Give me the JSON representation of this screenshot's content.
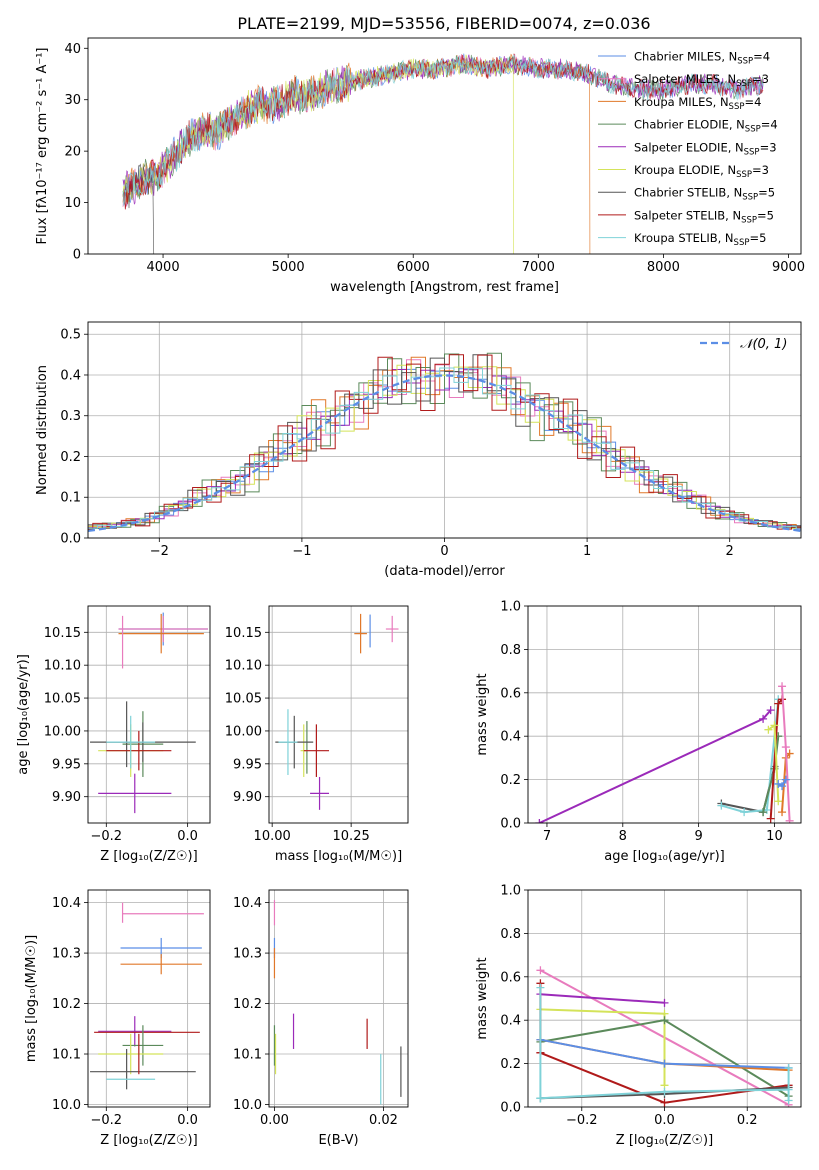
{
  "figure_title": "PLATE=2199, MJD=53556, FIBERID=0074, z=0.036",
  "colors": {
    "chabrier_miles": "#5b8ee6",
    "salpeter_miles": "#e87bbd",
    "kroupa_miles": "#e0782a",
    "chabrier_elodie": "#5b8a5b",
    "salpeter_elodie": "#9b2ab9",
    "kroupa_elodie": "#d4e35a",
    "chabrier_stelib": "#555555",
    "salpeter_stelib": "#b01a1a",
    "kroupa_stelib": "#7fd2d8",
    "normal_curve": "#5b8ee6",
    "grid": "#b0b0b0"
  },
  "chart_data": [
    {
      "id": "spectrum",
      "type": "line",
      "title": "PLATE=2199, MJD=53556, FIBERID=0074, z=0.036",
      "xlabel": "wavelength [Angstrom, rest frame]",
      "ylabel": "Flux [fλ10⁻¹⁷ erg cm⁻² s⁻¹ A⁻¹]",
      "xlim": [
        3400,
        9100
      ],
      "ylim": [
        0,
        42
      ],
      "xticks": [
        4000,
        5000,
        6000,
        7000,
        8000,
        9000
      ],
      "yticks": [
        0,
        10,
        20,
        30,
        40
      ],
      "grid": false,
      "legend_position": "upper-right",
      "continuum": {
        "x": [
          3680,
          3750,
          3850,
          3950,
          4050,
          4150,
          4300,
          4450,
          4600,
          4750,
          4900,
          5050,
          5200,
          5400,
          5600,
          5800,
          6000,
          6200,
          6400,
          6600,
          6800,
          7000,
          7200,
          7400,
          7600,
          7800,
          8000,
          8200,
          8400,
          8600,
          8800
        ],
        "y": [
          12,
          13,
          15,
          15,
          18,
          21,
          24,
          24,
          27,
          29,
          29,
          31,
          31,
          33,
          34,
          35,
          36,
          36,
          37,
          36,
          37,
          36,
          36,
          35,
          33,
          32,
          32,
          33,
          33,
          32,
          33
        ]
      },
      "dropouts": [
        {
          "series": "Chabrier STELIB, N_SSP=5",
          "from_x": 3920,
          "x": [
            3920,
            3925
          ],
          "y": [
            12,
            0
          ]
        },
        {
          "series": "Kroupa ELODIE, N_SSP=3",
          "from_x": 6800,
          "x": [
            6800,
            6802
          ],
          "y": [
            33,
            0
          ]
        },
        {
          "series": "Kroupa MILES, N_SSP=4",
          "from_x": 7410,
          "x": [
            7410,
            7412
          ],
          "y": [
            35,
            0
          ]
        }
      ],
      "series": [
        {
          "name": "Chabrier MILES, N_SSP=4",
          "label": "Chabrier MILES, N",
          "sub": "SSP",
          "eq": "=4",
          "color_key": "chabrier_miles"
        },
        {
          "name": "Salpeter MILES, N_SSP=3",
          "label": "Salpeter MILES, N",
          "sub": "SSP",
          "eq": "=3",
          "color_key": "salpeter_miles"
        },
        {
          "name": "Kroupa MILES, N_SSP=4",
          "label": "Kroupa MILES, N",
          "sub": "SSP",
          "eq": "=4",
          "color_key": "kroupa_miles"
        },
        {
          "name": "Chabrier ELODIE, N_SSP=4",
          "label": "Chabrier ELODIE, N",
          "sub": "SSP",
          "eq": "=4",
          "color_key": "chabrier_elodie"
        },
        {
          "name": "Salpeter ELODIE, N_SSP=3",
          "label": "Salpeter ELODIE, N",
          "sub": "SSP",
          "eq": "=3",
          "color_key": "salpeter_elodie"
        },
        {
          "name": "Kroupa ELODIE, N_SSP=3",
          "label": "Kroupa ELODIE, N",
          "sub": "SSP",
          "eq": "=3",
          "color_key": "kroupa_elodie"
        },
        {
          "name": "Chabrier STELIB, N_SSP=5",
          "label": "Chabrier STELIB, N",
          "sub": "SSP",
          "eq": "=5",
          "color_key": "chabrier_stelib"
        },
        {
          "name": "Salpeter STELIB, N_SSP=5",
          "label": "Salpeter STELIB, N",
          "sub": "SSP",
          "eq": "=5",
          "color_key": "salpeter_stelib"
        },
        {
          "name": "Kroupa STELIB, N_SSP=5",
          "label": "Kroupa STELIB, N",
          "sub": "SSP",
          "eq": "=5",
          "color_key": "kroupa_stelib"
        }
      ]
    },
    {
      "id": "residuals",
      "type": "histogram",
      "xlabel": "(data-model)/error",
      "ylabel": "Normed distribution",
      "xlim": [
        -2.5,
        2.5
      ],
      "ylim": [
        0,
        0.53
      ],
      "xticks": [
        -2,
        -1,
        0,
        1,
        2
      ],
      "yticks": [
        0.0,
        0.1,
        0.2,
        0.3,
        0.4,
        0.5
      ],
      "grid": true,
      "legend_position": "upper-right",
      "bin_width": 0.1,
      "reference_curve": {
        "label": "𝒩(0, 1)",
        "mean": 0,
        "sigma": 1
      },
      "reference_profile": {
        "x": [
          -2.5,
          -2.3,
          -2.1,
          -1.9,
          -1.7,
          -1.5,
          -1.3,
          -1.1,
          -0.9,
          -0.7,
          -0.5,
          -0.3,
          -0.1,
          0.0,
          0.1,
          0.3,
          0.5,
          0.7,
          0.9,
          1.1,
          1.3,
          1.5,
          1.7,
          1.9,
          2.1,
          2.3,
          2.5
        ],
        "y": [
          0.025,
          0.03,
          0.045,
          0.07,
          0.1,
          0.13,
          0.18,
          0.22,
          0.27,
          0.31,
          0.35,
          0.38,
          0.395,
          0.4,
          0.395,
          0.38,
          0.35,
          0.31,
          0.27,
          0.22,
          0.18,
          0.13,
          0.1,
          0.07,
          0.045,
          0.03,
          0.025
        ]
      },
      "bin_jitter": [
        0.0,
        0.03,
        -0.02,
        0.05,
        -0.04,
        0.02,
        -0.05,
        0.04,
        0.01,
        -0.03,
        0.06,
        -0.01,
        0.03,
        -0.06,
        0.02,
        0.04,
        -0.02,
        0.05,
        -0.04,
        0.01
      ]
    },
    {
      "id": "age-vs-Z",
      "type": "errorbar",
      "xlabel": "Z [log₁₀(Z/Z☉)]",
      "ylabel": "age  [log₁₀(age/yr)]",
      "xlim": [
        -0.245,
        0.055
      ],
      "ylim": [
        9.86,
        10.19
      ],
      "xticks": [
        -0.2,
        0.0
      ],
      "yticks": [
        9.9,
        9.95,
        10.0,
        10.05,
        10.1,
        10.15
      ],
      "grid": true,
      "points": [
        {
          "k": "chabrier_miles",
          "x": -0.06,
          "y": 10.155,
          "xerr": 0.11,
          "yerr": 0.025
        },
        {
          "k": "salpeter_miles",
          "x": -0.06,
          "y": 10.155,
          "xerr": 0.11,
          "yerr": 0.02
        },
        {
          "k": "kroupa_miles",
          "x": -0.065,
          "y": 10.148,
          "xerr": 0.105,
          "yerr": 0.03
        },
        {
          "k": "salpeter_miles",
          "x": -0.16,
          "y": 10.135,
          "xerr": 0.0,
          "yerr": 0.04
        },
        {
          "k": "chabrier_elodie",
          "x": -0.11,
          "y": 9.98,
          "xerr": 0.05,
          "yerr": 0.05
        },
        {
          "k": "salpeter_elodie",
          "x": -0.13,
          "y": 9.905,
          "xerr": 0.09,
          "yerr": 0.03
        },
        {
          "k": "kroupa_elodie",
          "x": -0.14,
          "y": 9.97,
          "xerr": 0.08,
          "yerr": 0.04
        },
        {
          "k": "chabrier_stelib",
          "x": -0.11,
          "y": 9.983,
          "xerr": 0.13,
          "yerr": 0.03
        },
        {
          "k": "chabrier_stelib",
          "x": -0.15,
          "y": 9.995,
          "xerr": 0.0,
          "yerr": 0.05
        },
        {
          "k": "salpeter_stelib",
          "x": -0.12,
          "y": 9.97,
          "xerr": 0.08,
          "yerr": 0.03
        },
        {
          "k": "kroupa_stelib",
          "x": -0.14,
          "y": 9.983,
          "xerr": 0.06,
          "yerr": 0.04
        }
      ]
    },
    {
      "id": "age-vs-mass",
      "type": "errorbar",
      "xlabel": "mass [log₁₀(M/M☉)]",
      "ylabel": "",
      "xlim": [
        9.99,
        10.43
      ],
      "ylim": [
        9.86,
        10.19
      ],
      "xticks": [
        10.0,
        10.25
      ],
      "yticks": [
        9.9,
        9.95,
        10.0,
        10.05,
        10.1,
        10.15
      ],
      "grid": true,
      "points": [
        {
          "k": "chabrier_miles",
          "x": 10.31,
          "y": 10.152,
          "xerr": 0.0,
          "yerr": 0.025
        },
        {
          "k": "salpeter_miles",
          "x": 10.38,
          "y": 10.155,
          "xerr": 0.02,
          "yerr": 0.02
        },
        {
          "k": "kroupa_miles",
          "x": 10.28,
          "y": 10.148,
          "xerr": 0.02,
          "yerr": 0.03
        },
        {
          "k": "chabrier_elodie",
          "x": 10.11,
          "y": 9.975,
          "xerr": 0.0,
          "yerr": 0.04
        },
        {
          "k": "salpeter_elodie",
          "x": 10.15,
          "y": 9.905,
          "xerr": 0.03,
          "yerr": 0.025
        },
        {
          "k": "kroupa_elodie",
          "x": 10.1,
          "y": 9.97,
          "xerr": 0.01,
          "yerr": 0.04
        },
        {
          "k": "chabrier_stelib",
          "x": 10.07,
          "y": 9.983,
          "xerr": 0.06,
          "yerr": 0.04
        },
        {
          "k": "salpeter_stelib",
          "x": 10.14,
          "y": 9.97,
          "xerr": 0.04,
          "yerr": 0.04
        },
        {
          "k": "kroupa_stelib",
          "x": 10.05,
          "y": 9.983,
          "xerr": 0.03,
          "yerr": 0.05
        }
      ]
    },
    {
      "id": "massweight-vs-age",
      "type": "line",
      "xlabel": "age  [log₁₀(age/yr)]",
      "ylabel": "mass weight",
      "xlim": [
        6.75,
        10.35
      ],
      "ylim": [
        0.0,
        1.0
      ],
      "xticks": [
        7,
        8,
        9,
        10
      ],
      "yticks": [
        0.0,
        0.2,
        0.4,
        0.6,
        0.8,
        1.0
      ],
      "grid": true,
      "series": [
        {
          "k": "salpeter_elodie",
          "x": [
            6.9,
            9.85,
            9.95
          ],
          "y": [
            0.0,
            0.48,
            0.52
          ]
        },
        {
          "k": "chabrier_stelib",
          "x": [
            9.3,
            9.85,
            10.0
          ],
          "y": [
            0.09,
            0.05,
            0.26
          ]
        },
        {
          "k": "kroupa_stelib",
          "x": [
            9.3,
            9.6,
            9.9,
            10.05
          ],
          "y": [
            0.08,
            0.05,
            0.06,
            0.57
          ]
        },
        {
          "k": "chabrier_elodie",
          "x": [
            9.85,
            10.0,
            10.05
          ],
          "y": [
            0.05,
            0.25,
            0.4
          ]
        },
        {
          "k": "salpeter_stelib",
          "x": [
            9.95,
            10.05,
            10.1
          ],
          "y": [
            0.02,
            0.55,
            0.57
          ]
        },
        {
          "k": "kroupa_elodie",
          "x": [
            9.92,
            10.0,
            10.05
          ],
          "y": [
            0.43,
            0.45,
            0.1
          ]
        },
        {
          "k": "kroupa_miles",
          "x": [
            10.1,
            10.15,
            10.2
          ],
          "y": [
            0.05,
            0.3,
            0.32
          ]
        },
        {
          "k": "salpeter_miles",
          "x": [
            10.1,
            10.15,
            10.2
          ],
          "y": [
            0.63,
            0.35,
            0.01
          ]
        },
        {
          "k": "chabrier_miles",
          "x": [
            10.05,
            10.1,
            10.15
          ],
          "y": [
            0.18,
            0.17,
            0.2
          ]
        }
      ]
    },
    {
      "id": "mass-vs-Z",
      "type": "errorbar",
      "xlabel": "Z [log₁₀(Z/Z☉)]",
      "ylabel": "mass [log₁₀(M/M☉)]",
      "xlim": [
        -0.245,
        0.055
      ],
      "ylim": [
        9.995,
        10.425
      ],
      "xticks": [
        -0.2,
        0.0
      ],
      "yticks": [
        10.0,
        10.1,
        10.2,
        10.3,
        10.4
      ],
      "grid": true,
      "points": [
        {
          "k": "salpeter_miles",
          "x": -0.06,
          "y": 10.378,
          "xerr": 0.1,
          "yerr": 0.0
        },
        {
          "k": "salpeter_miles",
          "x": -0.16,
          "y": 10.38,
          "xerr": 0.0,
          "yerr": 0.02
        },
        {
          "k": "chabrier_miles",
          "x": -0.065,
          "y": 10.31,
          "xerr": 0.1,
          "yerr": 0.02
        },
        {
          "k": "kroupa_miles",
          "x": -0.065,
          "y": 10.278,
          "xerr": 0.1,
          "yerr": 0.02
        },
        {
          "k": "salpeter_elodie",
          "x": -0.13,
          "y": 10.145,
          "xerr": 0.09,
          "yerr": 0.03
        },
        {
          "k": "salpeter_stelib",
          "x": -0.1,
          "y": 10.143,
          "xerr": 0.13,
          "yerr": 0.0
        },
        {
          "k": "chabrier_elodie",
          "x": -0.11,
          "y": 10.117,
          "xerr": 0.05,
          "yerr": 0.04
        },
        {
          "k": "kroupa_elodie",
          "x": -0.14,
          "y": 10.1,
          "xerr": 0.08,
          "yerr": 0.04
        },
        {
          "k": "chabrier_stelib",
          "x": -0.11,
          "y": 10.065,
          "xerr": 0.13,
          "yerr": 0.0
        },
        {
          "k": "chabrier_stelib",
          "x": -0.15,
          "y": 10.07,
          "xerr": 0.0,
          "yerr": 0.04
        },
        {
          "k": "kroupa_stelib",
          "x": -0.14,
          "y": 10.05,
          "xerr": 0.06,
          "yerr": 0.0
        },
        {
          "k": "salpeter_stelib",
          "x": -0.12,
          "y": 10.1,
          "xerr": 0.0,
          "yerr": 0.04
        }
      ]
    },
    {
      "id": "mass-vs-ebv",
      "type": "errorbar",
      "xlabel": "E(B-V)",
      "ylabel": "",
      "xlim": [
        -0.001,
        0.0245
      ],
      "ylim": [
        9.995,
        10.425
      ],
      "xticks": [
        0.0,
        0.02
      ],
      "yticks": [
        10.0,
        10.1,
        10.2,
        10.3,
        10.4
      ],
      "grid": true,
      "points": [
        {
          "k": "salpeter_miles",
          "x": 0.0,
          "y": 10.38,
          "xerr": 0.0,
          "yerr": 0.025
        },
        {
          "k": "chabrier_miles",
          "x": 0.0,
          "y": 10.31,
          "xerr": 0.0,
          "yerr": 0.02
        },
        {
          "k": "kroupa_miles",
          "x": 0.0,
          "y": 10.28,
          "xerr": 0.0,
          "yerr": 0.03
        },
        {
          "k": "salpeter_elodie",
          "x": 0.0035,
          "y": 10.145,
          "xerr": 0.0,
          "yerr": 0.035
        },
        {
          "k": "chabrier_elodie",
          "x": 0.0,
          "y": 10.117,
          "xerr": 0.0,
          "yerr": 0.04
        },
        {
          "k": "kroupa_elodie",
          "x": 0.0002,
          "y": 10.1,
          "xerr": 0.0,
          "yerr": 0.04
        },
        {
          "k": "salpeter_stelib",
          "x": 0.017,
          "y": 10.14,
          "xerr": 0.0,
          "yerr": 0.03
        },
        {
          "k": "kroupa_stelib",
          "x": 0.0195,
          "y": 10.05,
          "xerr": 0.0,
          "yerr": 0.05
        },
        {
          "k": "chabrier_stelib",
          "x": 0.0232,
          "y": 10.065,
          "xerr": 0.0,
          "yerr": 0.05
        }
      ]
    },
    {
      "id": "massweight-vs-Z",
      "type": "line",
      "xlabel": "Z [log₁₀(Z/Z☉)]",
      "ylabel": "mass weight",
      "xlim": [
        -0.33,
        0.33
      ],
      "ylim": [
        0.0,
        1.0
      ],
      "xticks": [
        -0.2,
        0.0,
        0.2
      ],
      "yticks": [
        0.0,
        0.2,
        0.4,
        0.6,
        0.8,
        1.0
      ],
      "grid": true,
      "series": [
        {
          "k": "salpeter_miles",
          "x": [
            -0.3,
            0.3
          ],
          "y": [
            0.63,
            0.01
          ]
        },
        {
          "k": "salpeter_elodie",
          "x": [
            -0.3,
            0.0
          ],
          "y": [
            0.52,
            0.48
          ]
        },
        {
          "k": "kroupa_elodie",
          "x": [
            -0.3,
            0.0,
            0.0
          ],
          "y": [
            0.45,
            0.43,
            0.1
          ]
        },
        {
          "k": "chabrier_elodie",
          "x": [
            -0.3,
            0.0,
            0.3
          ],
          "y": [
            0.3,
            0.4,
            0.05
          ]
        },
        {
          "k": "kroupa_miles",
          "x": [
            -0.3,
            0.0,
            0.3
          ],
          "y": [
            0.31,
            0.2,
            0.17
          ]
        },
        {
          "k": "chabrier_miles",
          "x": [
            -0.3,
            0.0,
            0.3
          ],
          "y": [
            0.31,
            0.2,
            0.18
          ]
        },
        {
          "k": "salpeter_stelib",
          "x": [
            -0.3,
            0.0,
            0.3
          ],
          "y": [
            0.25,
            0.02,
            0.1
          ]
        },
        {
          "k": "chabrier_stelib",
          "x": [
            -0.3,
            0.0,
            0.3
          ],
          "y": [
            0.04,
            0.06,
            0.09
          ]
        },
        {
          "k": "kroupa_stelib",
          "x": [
            -0.3,
            0.0,
            0.3
          ],
          "y": [
            0.04,
            0.07,
            0.08
          ]
        },
        {
          "k": "salpeter_stelib",
          "x": [
            -0.3,
            -0.3
          ],
          "y": [
            0.57,
            0.25
          ]
        },
        {
          "k": "kroupa_stelib",
          "x": [
            -0.3,
            -0.3
          ],
          "y": [
            0.55,
            0.04
          ]
        },
        {
          "k": "kroupa_stelib",
          "x": [
            0.3,
            0.3
          ],
          "y": [
            0.18,
            0.03
          ]
        }
      ]
    }
  ]
}
